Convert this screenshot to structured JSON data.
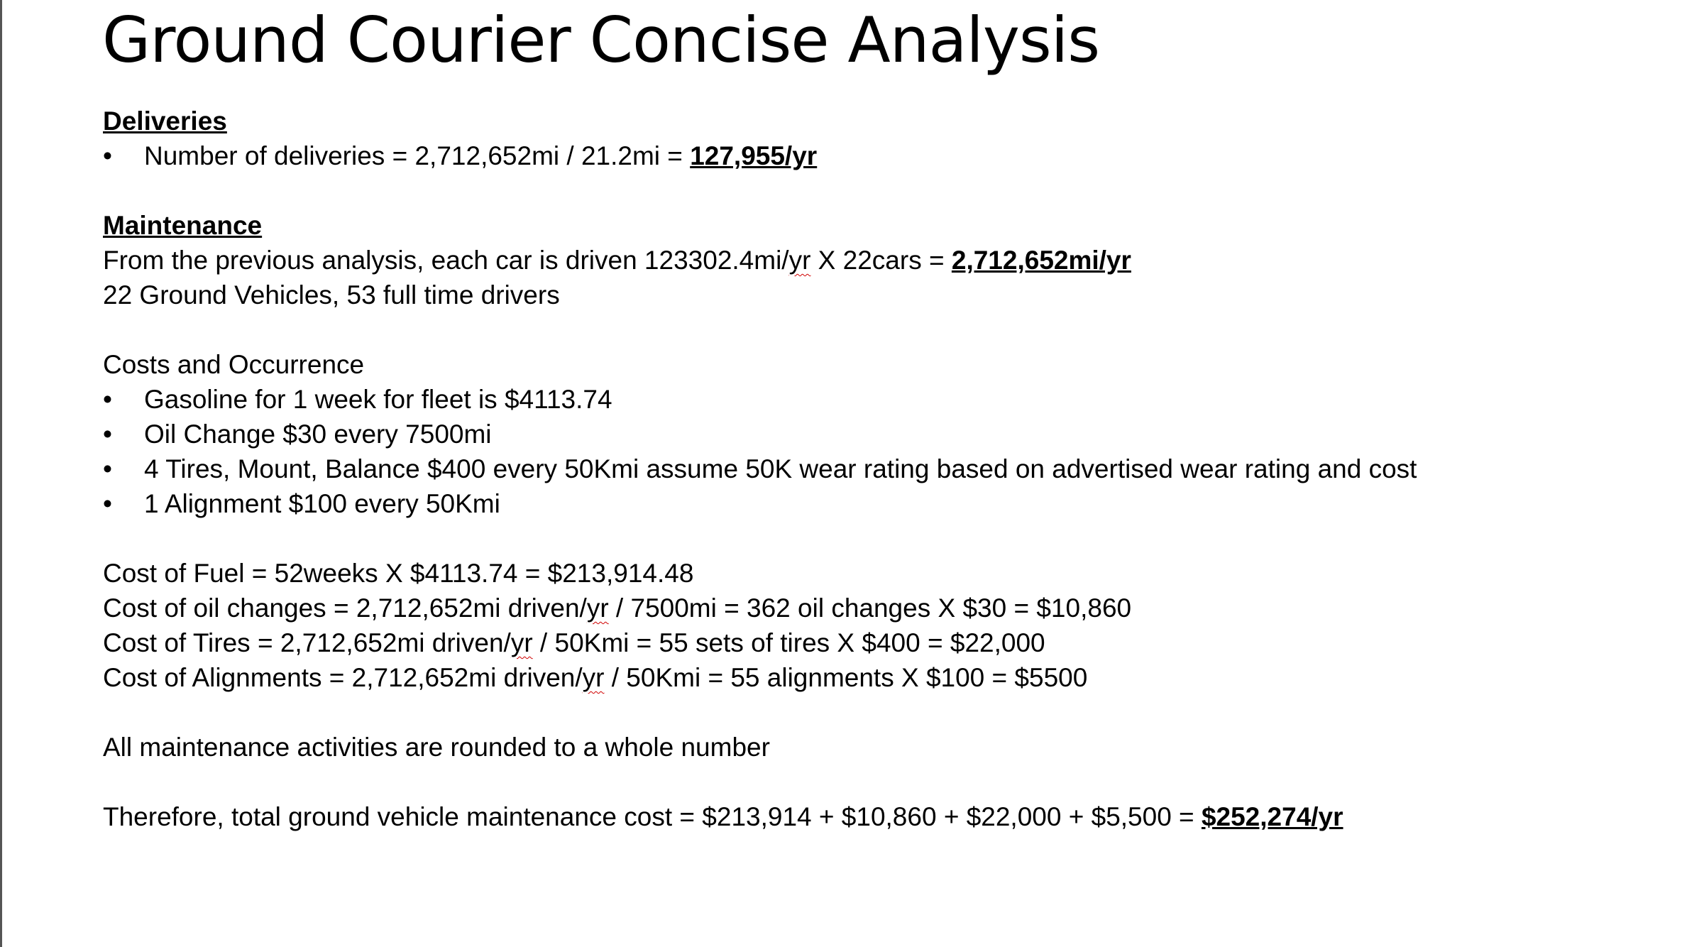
{
  "title": "Ground Courier Concise Analysis",
  "deliveries": {
    "heading": "Deliveries",
    "bullet_prefix": "Number of deliveries = 2,712,652mi / 21.2mi = ",
    "bullet_result": "127,955/yr"
  },
  "maintenance": {
    "heading": "Maintenance",
    "line1_prefix": "From the previous analysis, each car is driven 123302.4mi/",
    "line1_yr": "yr",
    "line1_mid": " X 22cars = ",
    "line1_result": "2,712,652mi/yr",
    "line2": "22 Ground Vehicles,  53 full time drivers"
  },
  "costs": {
    "heading": "Costs and Occurrence",
    "bullet_symbol": "•",
    "items": [
      "Gasoline for 1 week for fleet is $4113.74",
      "Oil Change $30 every 7500mi",
      "4 Tires, Mount, Balance $400 every 50Kmi assume 50K wear rating based on advertised wear rating and cost",
      "1 Alignment $100 every 50Kmi"
    ]
  },
  "calculations": {
    "fuel": "Cost of Fuel = 52weeks X $4113.74 = $213,914.48",
    "oil_prefix": "Cost of oil changes = 2,712,652mi driven/",
    "oil_suffix": " / 7500mi = 362 oil changes X $30 = $10,860",
    "tires_prefix": "Cost of Tires = 2,712,652mi driven/",
    "tires_suffix": " / 50Kmi = 55 sets of tires X $400 = $22,000",
    "align_prefix": "Cost of Alignments = 2,712,652mi driven/",
    "align_suffix": " / 50Kmi = 55 alignments X $100 = $5500",
    "yr": "yr"
  },
  "note": "All maintenance activities are rounded to a whole number",
  "total": {
    "prefix": "Therefore, total ground vehicle maintenance cost = $213,914 + $10,860 + $22,000 + $5,500 = ",
    "result": "$252,274/yr"
  },
  "colors": {
    "text": "#000000",
    "spellcheck_underline": "#d00000",
    "background": "#ffffff"
  }
}
